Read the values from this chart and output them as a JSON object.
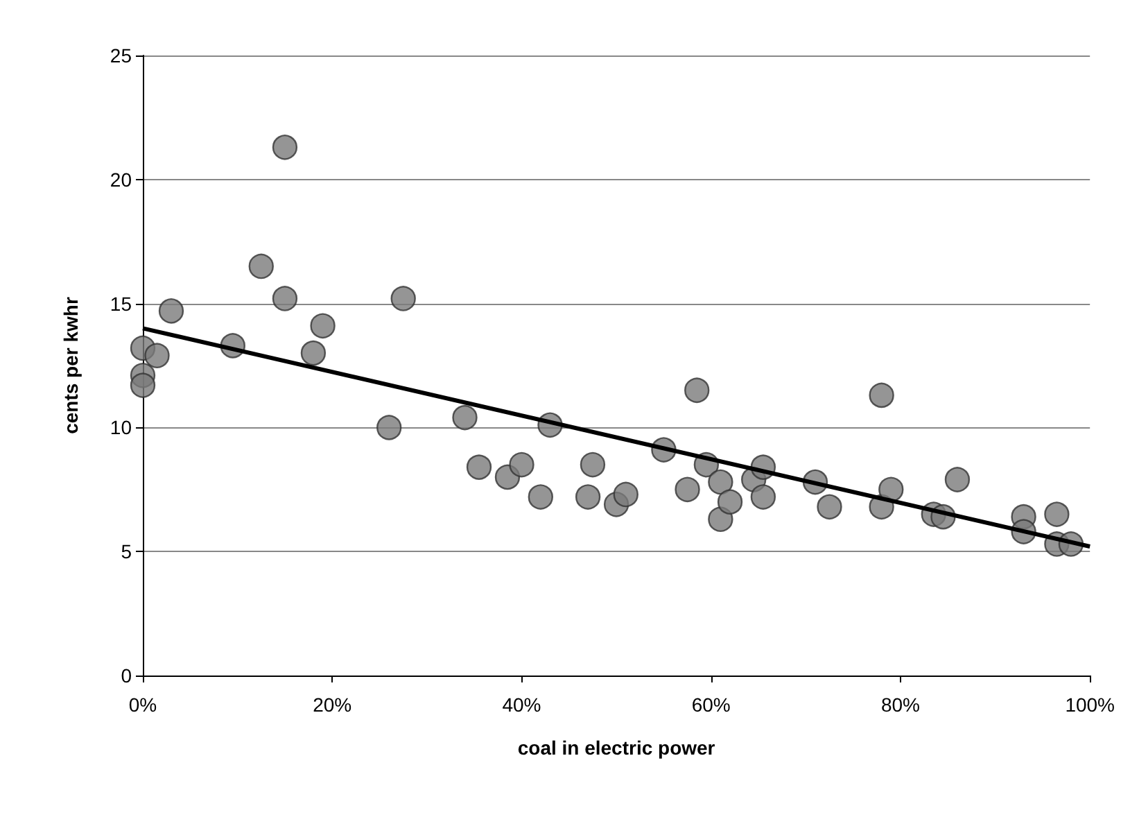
{
  "chart_data": {
    "type": "scatter",
    "xlabel": "coal in electric power",
    "ylabel": "cents per kwhr",
    "xlim": [
      0,
      100
    ],
    "xticks": [
      {
        "value": 0,
        "label": "0%"
      },
      {
        "value": 20,
        "label": "20%"
      },
      {
        "value": 40,
        "label": "40%"
      },
      {
        "value": 60,
        "label": "60%"
      },
      {
        "value": 80,
        "label": "80%"
      },
      {
        "value": 100,
        "label": "100%"
      }
    ],
    "ylim": [
      0,
      25
    ],
    "yticks": [
      0,
      5,
      10,
      15,
      20,
      25
    ],
    "grid": "y",
    "marker": "circle",
    "series": [
      {
        "type": "scatter",
        "color": "#7a7a7a",
        "x": [
          0,
          0,
          0,
          1.5,
          3,
          9.5,
          12.5,
          15,
          15,
          18,
          19,
          26,
          27.5,
          34,
          35.5,
          38.5,
          40,
          42,
          43,
          47,
          47.5,
          50,
          51,
          55,
          57.5,
          58.5,
          59.5,
          61,
          61,
          62,
          64.5,
          65.5,
          65.5,
          71,
          72.5,
          78,
          78,
          79,
          83.5,
          84.5,
          86,
          93,
          93,
          96.5,
          96.5,
          98
        ],
        "values": [
          13.2,
          12.1,
          11.7,
          12.9,
          14.7,
          13.3,
          16.5,
          21.3,
          15.2,
          13.0,
          14.1,
          10.0,
          15.2,
          10.4,
          8.4,
          8.0,
          8.5,
          7.2,
          10.1,
          7.2,
          8.5,
          6.9,
          7.3,
          9.1,
          7.5,
          11.5,
          8.5,
          7.8,
          6.3,
          7.0,
          7.9,
          8.4,
          7.2,
          7.8,
          6.8,
          11.3,
          6.8,
          7.5,
          6.5,
          6.4,
          7.9,
          6.4,
          5.8,
          6.5,
          5.3,
          5.3
        ]
      },
      {
        "type": "line",
        "color": "#000000",
        "marker": "none",
        "x": [
          0,
          100
        ],
        "values": [
          14.0,
          5.2
        ]
      }
    ]
  }
}
